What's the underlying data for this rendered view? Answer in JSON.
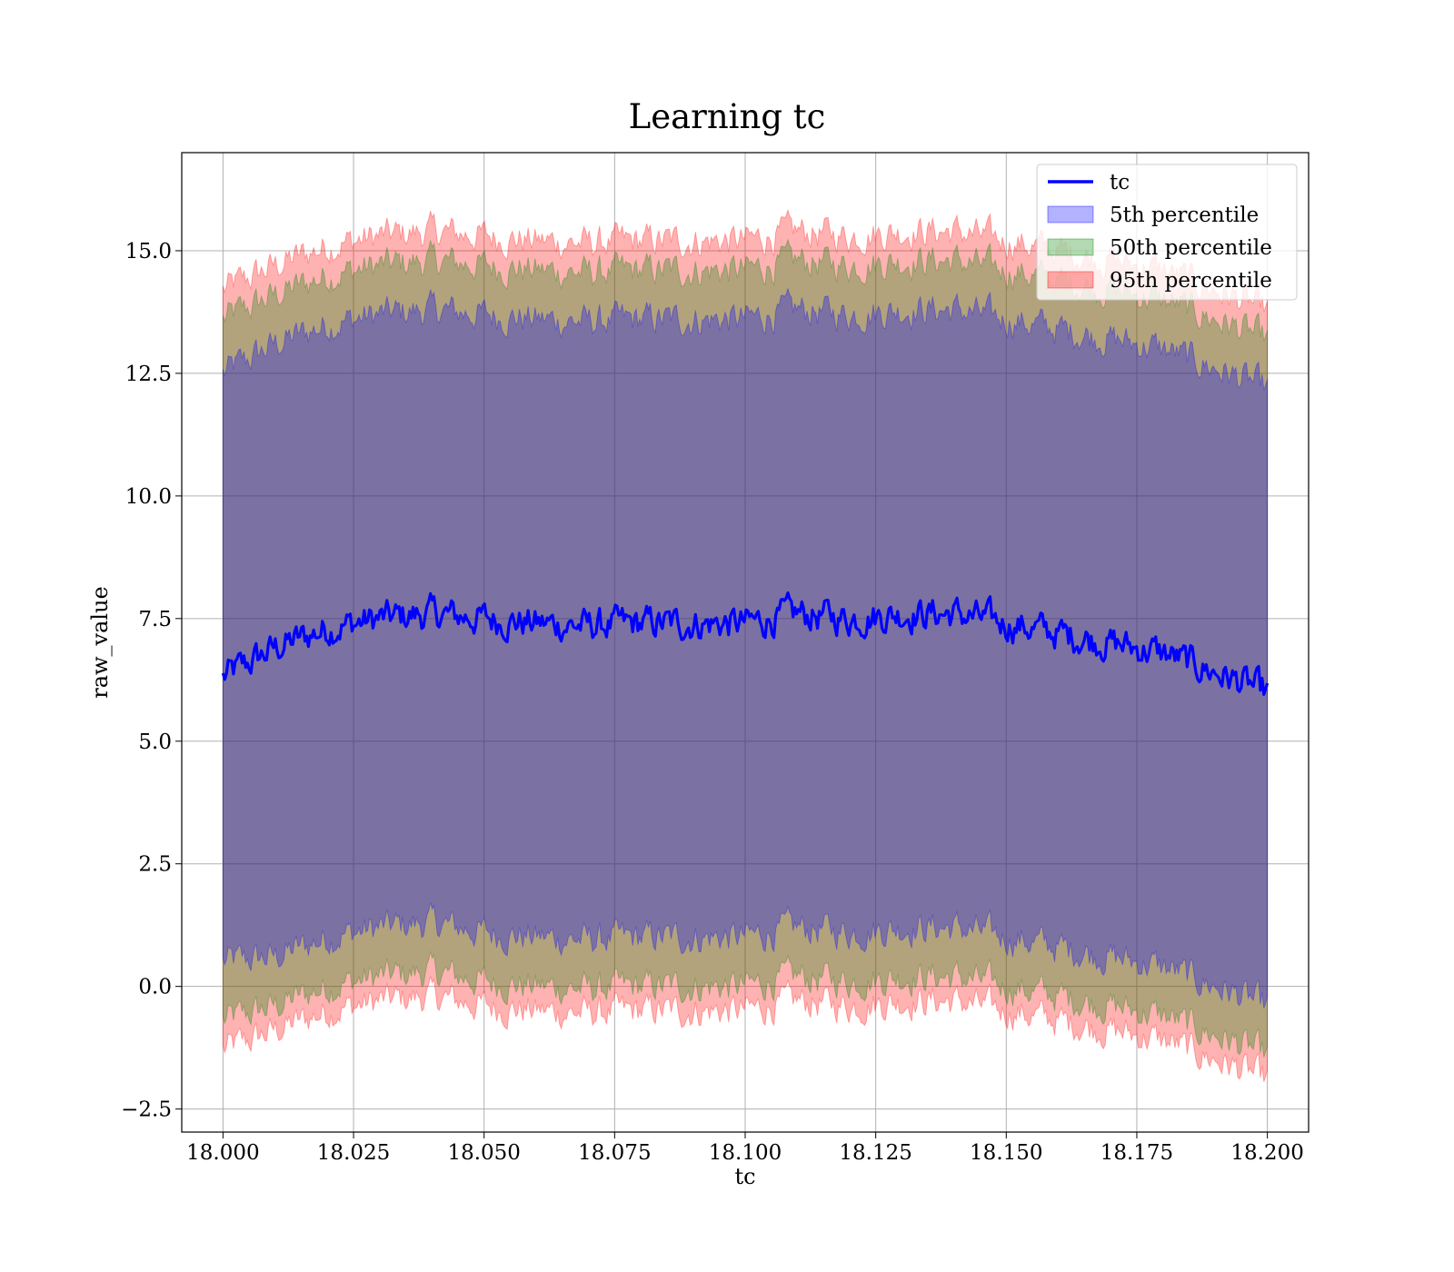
{
  "chart_data": {
    "type": "area",
    "title": "Learning tc",
    "xlabel": "tc",
    "ylabel": "raw_value",
    "xlim": [
      17.9921,
      18.2079
    ],
    "ylim": [
      -2.97,
      17.0
    ],
    "grid": true,
    "legend_position": "top-right",
    "x_ticks": [
      18.0,
      18.025,
      18.05,
      18.075,
      18.1,
      18.125,
      18.15,
      18.175,
      18.2
    ],
    "x_tick_labels": [
      "18.000",
      "18.025",
      "18.050",
      "18.075",
      "18.100",
      "18.125",
      "18.150",
      "18.175",
      "18.200"
    ],
    "y_ticks": [
      -2.5,
      0.0,
      2.5,
      5.0,
      7.5,
      10.0,
      12.5,
      15.0
    ],
    "y_tick_labels": [
      "−2.5",
      "0.0",
      "2.5",
      "5.0",
      "7.5",
      "10.0",
      "12.5",
      "15.0"
    ],
    "x": [
      18.0,
      18.01,
      18.02,
      18.03,
      18.04,
      18.05,
      18.06,
      18.07,
      18.08,
      18.09,
      18.1,
      18.11,
      18.12,
      18.13,
      18.14,
      18.15,
      18.16,
      18.17,
      18.18,
      18.19,
      18.2
    ],
    "series": [
      {
        "name": "tc",
        "kind": "line",
        "color": "#0000ff",
        "values": [
          6.3,
          6.9,
          7.3,
          7.5,
          7.6,
          7.5,
          7.4,
          7.35,
          7.4,
          7.4,
          7.4,
          7.6,
          7.5,
          7.6,
          7.6,
          7.4,
          7.2,
          7.0,
          6.8,
          6.4,
          6.0
        ]
      },
      {
        "name": "5th percentile",
        "kind": "band",
        "color": "#0000ff",
        "fill_opacity": 0.3,
        "lower": [
          0.5,
          0.6,
          1.0,
          1.2,
          1.3,
          1.1,
          1.0,
          0.95,
          1.0,
          1.0,
          1.0,
          1.2,
          1.1,
          1.2,
          1.2,
          1.0,
          0.8,
          0.6,
          0.4,
          0.0,
          -0.4
        ],
        "upper": [
          12.5,
          13.1,
          13.5,
          13.7,
          13.8,
          13.7,
          13.6,
          13.55,
          13.6,
          13.6,
          13.6,
          13.8,
          13.7,
          13.8,
          13.8,
          13.6,
          13.4,
          13.2,
          13.0,
          12.6,
          12.2
        ]
      },
      {
        "name": "50th percentile",
        "kind": "band",
        "color": "#008000",
        "fill_opacity": 0.3,
        "lower": [
          -0.7,
          -0.4,
          0.0,
          0.2,
          0.3,
          0.1,
          0.0,
          -0.05,
          0.0,
          0.0,
          0.0,
          0.2,
          0.1,
          0.2,
          0.2,
          0.0,
          -0.2,
          -0.4,
          -0.6,
          -1.0,
          -1.4
        ],
        "upper": [
          13.6,
          14.1,
          14.5,
          14.7,
          14.8,
          14.7,
          14.6,
          14.55,
          14.6,
          14.6,
          14.6,
          14.8,
          14.7,
          14.8,
          14.8,
          14.6,
          14.4,
          14.2,
          14.0,
          13.6,
          13.2
        ]
      },
      {
        "name": "95th percentile",
        "kind": "band",
        "color": "#ff0000",
        "fill_opacity": 0.3,
        "lower": [
          -1.3,
          -0.9,
          -0.5,
          -0.3,
          -0.2,
          -0.4,
          -0.5,
          -0.55,
          -0.5,
          -0.5,
          -0.5,
          -0.3,
          -0.4,
          -0.3,
          -0.3,
          -0.5,
          -0.7,
          -0.9,
          -1.1,
          -1.5,
          -1.9
        ],
        "upper": [
          14.2,
          14.7,
          15.1,
          15.3,
          15.4,
          15.3,
          15.2,
          15.15,
          15.2,
          15.2,
          15.2,
          15.4,
          15.3,
          15.4,
          15.4,
          15.2,
          15.0,
          14.8,
          14.6,
          14.2,
          13.8
        ]
      }
    ]
  }
}
